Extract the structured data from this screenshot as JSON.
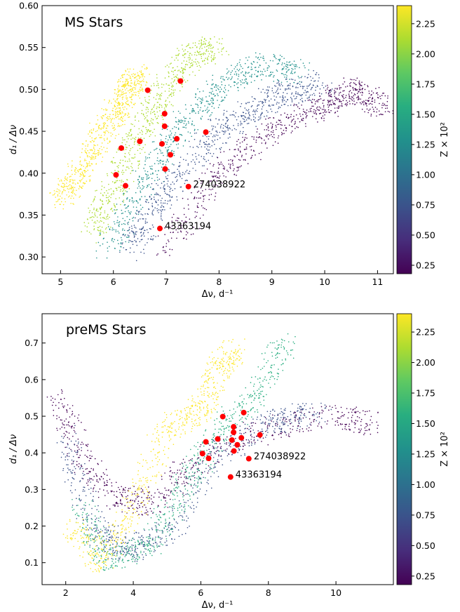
{
  "palette": [
    "#440154",
    "#472d7b",
    "#3b528b",
    "#2c728e",
    "#21918c",
    "#28ae80",
    "#5ec962",
    "#addc30",
    "#fde725"
  ],
  "chart_data": [
    {
      "type": "scatter",
      "title": "MS Stars",
      "xlabel": "Δν, d⁻¹",
      "ylabel": "d₁ / Δν",
      "xlim": [
        4.65,
        11.3
      ],
      "ylim": [
        0.28,
        0.6
      ],
      "xticks": [
        "5",
        "6",
        "7",
        "8",
        "9",
        "10",
        "11"
      ],
      "yticks": [
        "0.30",
        "0.35",
        "0.40",
        "0.45",
        "0.50",
        "0.55",
        "0.60"
      ],
      "colorbar": {
        "label": "Z × 10²",
        "ticks": [
          "0.25",
          "0.50",
          "0.75",
          "1.00",
          "1.25",
          "1.50",
          "1.75",
          "2.00",
          "2.25"
        ],
        "range": [
          0.18,
          2.4
        ]
      },
      "model_tracks": [
        {
          "z": 2.3,
          "x": [
            5.0,
            5.4,
            5.8,
            6.2,
            6.5
          ],
          "y": [
            0.37,
            0.4,
            0.45,
            0.49,
            0.52
          ]
        },
        {
          "z": 2.0,
          "x": [
            5.6,
            6.0,
            6.5,
            7.0,
            7.5,
            8.0
          ],
          "y": [
            0.33,
            0.38,
            0.45,
            0.5,
            0.54,
            0.55
          ]
        },
        {
          "z": 1.4,
          "x": [
            5.9,
            6.5,
            7.2,
            8.0,
            8.8,
            9.5
          ],
          "y": [
            0.31,
            0.38,
            0.45,
            0.5,
            0.53,
            0.52
          ]
        },
        {
          "z": 0.8,
          "x": [
            6.3,
            7.0,
            8.0,
            9.0,
            10.0
          ],
          "y": [
            0.31,
            0.38,
            0.45,
            0.49,
            0.51
          ]
        },
        {
          "z": 0.3,
          "x": [
            7.0,
            8.0,
            9.0,
            10.0,
            10.5,
            11.1
          ],
          "y": [
            0.31,
            0.4,
            0.45,
            0.48,
            0.5,
            0.48
          ]
        }
      ],
      "stars": [
        {
          "x": 6.65,
          "y": 0.499
        },
        {
          "x": 7.27,
          "y": 0.51
        },
        {
          "x": 6.97,
          "y": 0.471
        },
        {
          "x": 6.97,
          "y": 0.456
        },
        {
          "x": 7.75,
          "y": 0.449
        },
        {
          "x": 6.5,
          "y": 0.438
        },
        {
          "x": 6.92,
          "y": 0.435
        },
        {
          "x": 7.2,
          "y": 0.441
        },
        {
          "x": 6.15,
          "y": 0.43
        },
        {
          "x": 7.08,
          "y": 0.422
        },
        {
          "x": 6.98,
          "y": 0.405
        },
        {
          "x": 6.05,
          "y": 0.398
        },
        {
          "x": 6.23,
          "y": 0.385
        },
        {
          "x": 7.42,
          "y": 0.384
        },
        {
          "x": 6.88,
          "y": 0.334
        }
      ],
      "annotations": [
        {
          "text": "274038922",
          "x": 7.42,
          "y": 0.384
        },
        {
          "text": "43363194",
          "x": 6.88,
          "y": 0.334
        }
      ]
    },
    {
      "type": "scatter",
      "title": "preMS Stars",
      "xlabel": "Δν, d⁻¹",
      "ylabel": "d₁ / Δν",
      "xlim": [
        1.3,
        11.7
      ],
      "ylim": [
        0.04,
        0.78
      ],
      "xticks": [
        "2",
        "4",
        "6",
        "8",
        "10"
      ],
      "yticks": [
        "0.1",
        "0.2",
        "0.3",
        "0.4",
        "0.5",
        "0.6",
        "0.7"
      ],
      "colorbar": {
        "label": "Z × 10²",
        "ticks": [
          "0.25",
          "0.50",
          "0.75",
          "1.00",
          "1.25",
          "1.50",
          "1.75",
          "2.00",
          "2.25"
        ],
        "range": [
          0.18,
          2.4
        ]
      },
      "model_tracks": [
        {
          "z": 0.3,
          "x": [
            1.8,
            2.5,
            3.5,
            4.5,
            6.0,
            8.0,
            10.0,
            11.1
          ],
          "y": [
            0.55,
            0.38,
            0.28,
            0.26,
            0.38,
            0.47,
            0.5,
            0.48
          ]
        },
        {
          "z": 0.7,
          "x": [
            2.0,
            2.8,
            3.8,
            5.0,
            6.5,
            8.0,
            9.5
          ],
          "y": [
            0.45,
            0.2,
            0.13,
            0.18,
            0.4,
            0.48,
            0.52
          ]
        },
        {
          "z": 1.5,
          "x": [
            2.5,
            3.2,
            4.5,
            5.5,
            6.5,
            7.5,
            8.5
          ],
          "y": [
            0.25,
            0.11,
            0.14,
            0.3,
            0.45,
            0.55,
            0.7
          ]
        },
        {
          "z": 2.3,
          "x": [
            2.2,
            3.0,
            4.0,
            5.0,
            6.0,
            6.5,
            7.0
          ],
          "y": [
            0.2,
            0.1,
            0.25,
            0.47,
            0.52,
            0.62,
            0.68
          ]
        }
      ],
      "stars": [
        {
          "x": 6.65,
          "y": 0.499
        },
        {
          "x": 7.27,
          "y": 0.51
        },
        {
          "x": 6.97,
          "y": 0.471
        },
        {
          "x": 6.97,
          "y": 0.456
        },
        {
          "x": 7.75,
          "y": 0.449
        },
        {
          "x": 6.5,
          "y": 0.438
        },
        {
          "x": 6.92,
          "y": 0.435
        },
        {
          "x": 7.2,
          "y": 0.441
        },
        {
          "x": 6.15,
          "y": 0.43
        },
        {
          "x": 7.08,
          "y": 0.422
        },
        {
          "x": 6.98,
          "y": 0.405
        },
        {
          "x": 6.05,
          "y": 0.398
        },
        {
          "x": 6.23,
          "y": 0.385
        },
        {
          "x": 7.42,
          "y": 0.384
        },
        {
          "x": 6.88,
          "y": 0.334
        }
      ],
      "annotations": [
        {
          "text": "274038922",
          "x": 7.42,
          "y": 0.384
        },
        {
          "text": "43363194",
          "x": 6.88,
          "y": 0.334
        }
      ]
    }
  ]
}
